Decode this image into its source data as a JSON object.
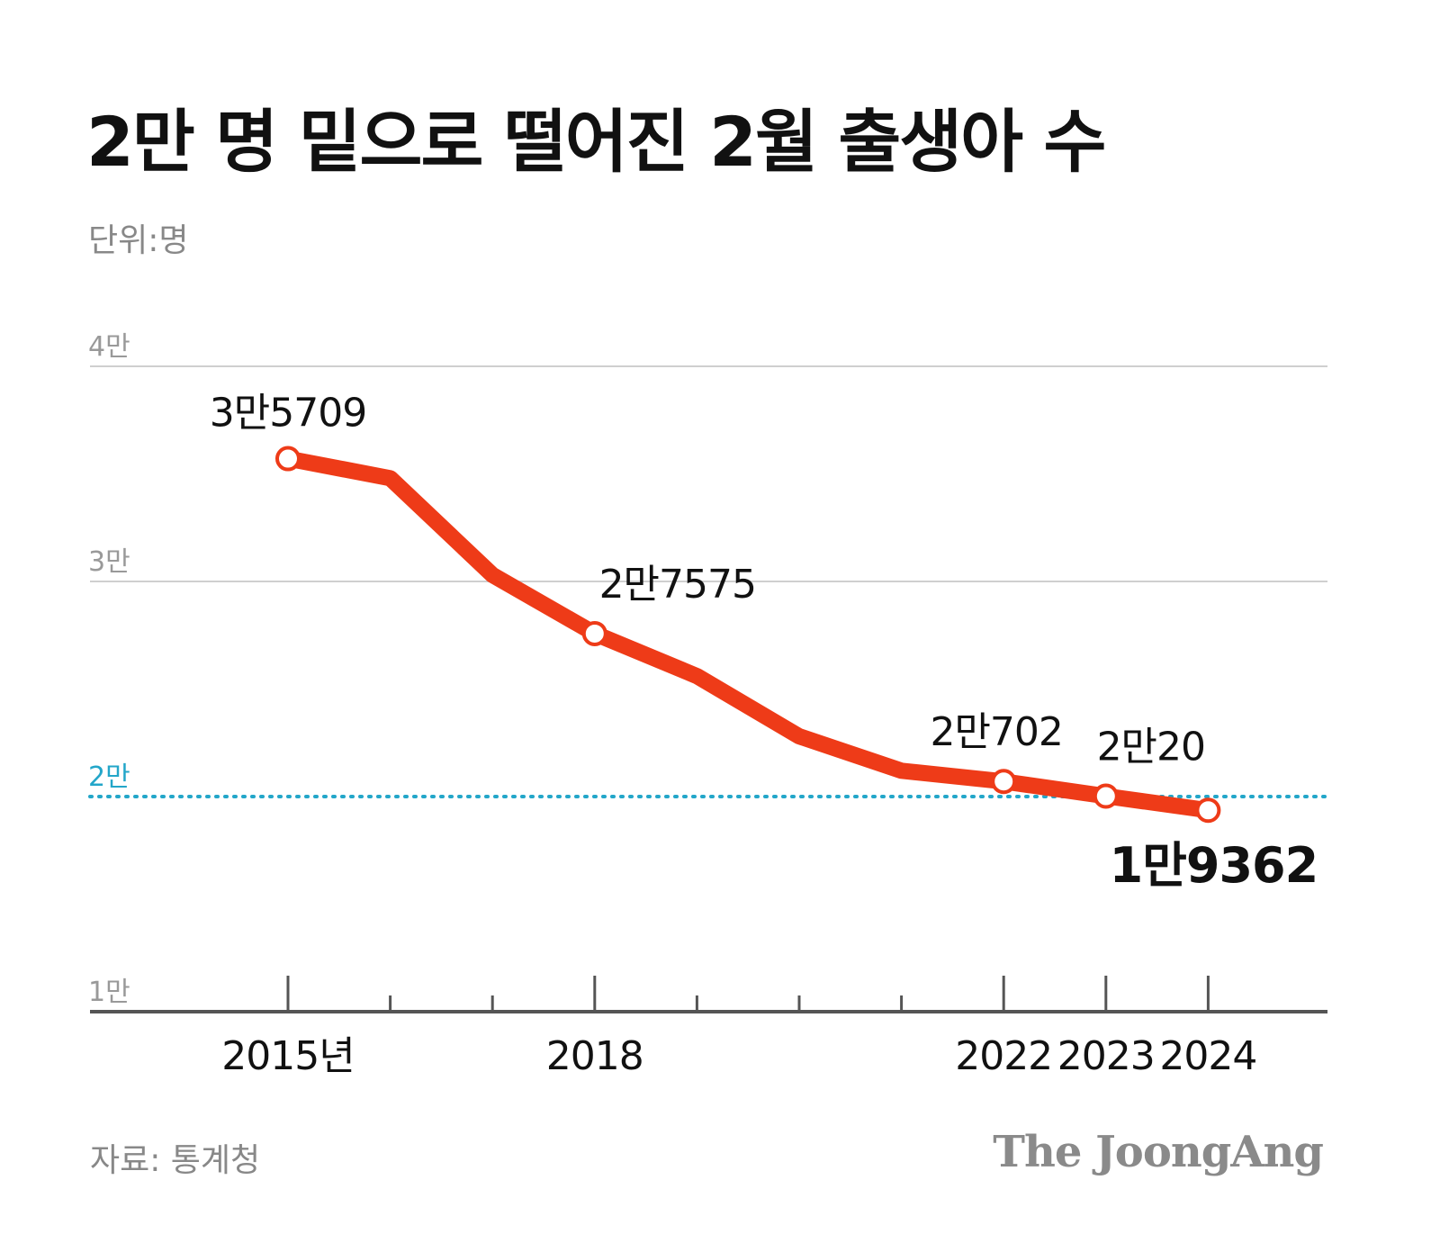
{
  "title": "2만 명 밑으로 떨어진 2월 출생아 수",
  "unit_label": "단위:명",
  "source": "자료: 통계청",
  "brand": "The JoongAng",
  "colors": {
    "line": "#ee3b18",
    "marker_fill": "#ffffff",
    "threshold": "#23a6c9",
    "grid": "#cfcfcf",
    "axis": "#555555"
  },
  "chart_data": {
    "type": "line",
    "x": [
      2015,
      2016,
      2017,
      2018,
      2019,
      2020,
      2021,
      2022,
      2023,
      2024
    ],
    "values": [
      35709,
      34800,
      30300,
      27575,
      25600,
      22800,
      21200,
      20702,
      20020,
      19362
    ],
    "ylim": [
      10000,
      40000
    ],
    "yticks": [
      {
        "value": 40000,
        "label": "4만"
      },
      {
        "value": 30000,
        "label": "3만"
      },
      {
        "value": 20000,
        "label": "2만"
      },
      {
        "value": 10000,
        "label": "1만"
      }
    ],
    "threshold": {
      "value": 20000,
      "style": "dotted"
    },
    "xtick_labels": [
      {
        "x": 2015,
        "label": "2015년"
      },
      {
        "x": 2018,
        "label": "2018"
      },
      {
        "x": 2022,
        "label": "2022"
      },
      {
        "x": 2023,
        "label": "2023"
      },
      {
        "x": 2024,
        "label": "2024"
      }
    ],
    "markers": [
      2015,
      2018,
      2022,
      2023,
      2024
    ],
    "data_labels": [
      {
        "x": 2015,
        "label": "3만5709",
        "emphasis": false
      },
      {
        "x": 2018,
        "label": "2만7575",
        "emphasis": false
      },
      {
        "x": 2022,
        "label": "2만702",
        "emphasis": false
      },
      {
        "x": 2023,
        "label": "2만20",
        "emphasis": false
      },
      {
        "x": 2024,
        "label": "1만9362",
        "emphasis": true
      }
    ],
    "grid": true
  }
}
